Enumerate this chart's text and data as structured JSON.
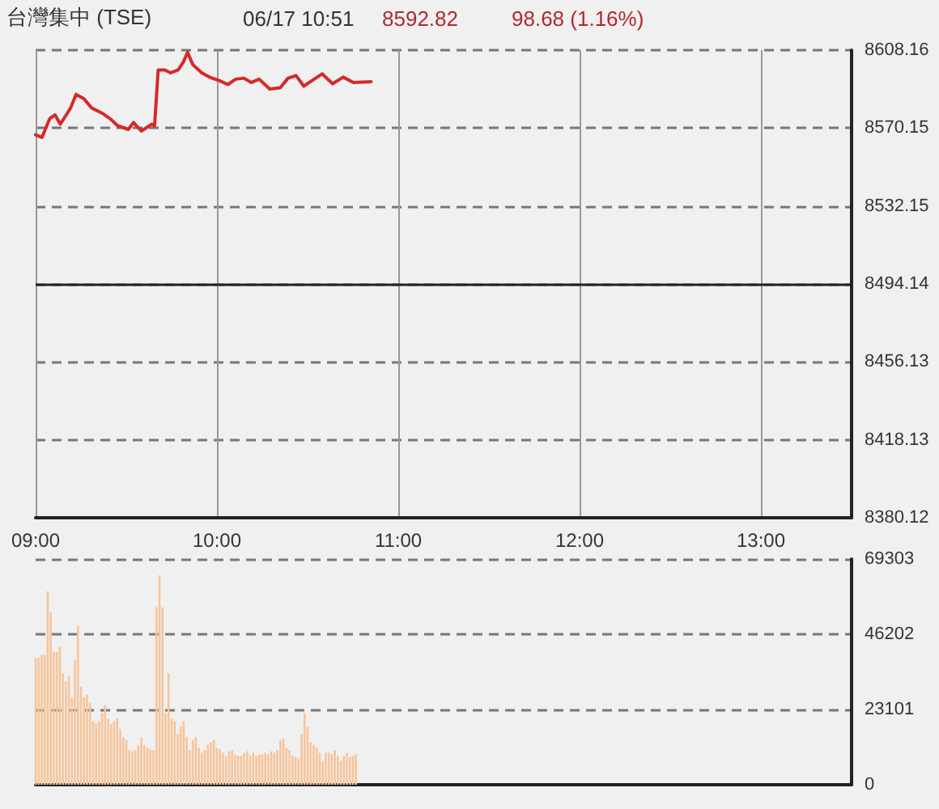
{
  "chart_data": [
    {
      "type": "line",
      "title": "台灣集中 (TSE)",
      "annotations": [
        "06/17 10:51",
        "8592.82",
        "98.68 (1.16%)"
      ],
      "x": [
        9.0,
        9.035,
        9.078,
        9.107,
        9.136,
        9.165,
        9.193,
        9.223,
        9.266,
        9.309,
        9.367,
        9.41,
        9.453,
        9.511,
        9.54,
        9.583,
        9.641,
        9.656,
        9.676,
        9.713,
        9.743,
        9.786,
        9.815,
        9.838,
        9.867,
        9.916,
        9.959,
        10.016,
        10.06,
        10.103,
        10.147,
        10.19,
        10.233,
        10.291,
        10.349,
        10.392,
        10.436,
        10.479,
        10.536,
        10.58,
        10.638,
        10.696,
        10.753,
        10.85
      ],
      "series": [
        {
          "color": "#d42a2a",
          "values": [
            8566.9,
            8565.6,
            8574.8,
            8576.6,
            8572.1,
            8576.0,
            8580.0,
            8586.6,
            8584.5,
            8580.0,
            8577.4,
            8574.8,
            8571.3,
            8569.5,
            8572.9,
            8568.7,
            8572.1,
            8571.3,
            8598.5,
            8598.5,
            8597.1,
            8598.5,
            8602.4,
            8607.1,
            8601.1,
            8597.1,
            8595.0,
            8593.2,
            8591.4,
            8594.0,
            8594.5,
            8592.4,
            8594.0,
            8589.2,
            8589.8,
            8594.5,
            8595.8,
            8590.6,
            8594.0,
            8596.6,
            8591.8,
            8595.0,
            8592.4,
            8592.8
          ]
        }
      ],
      "xlim": [
        9,
        13.5
      ],
      "xticks": [
        {
          "value": 9,
          "label": "09:00"
        },
        {
          "value": 10,
          "label": "10:00"
        },
        {
          "value": 11,
          "label": "11:00"
        },
        {
          "value": 12,
          "label": "12:00"
        },
        {
          "value": 13,
          "label": "13:00"
        }
      ],
      "ylim": [
        8380.12,
        8608.16
      ],
      "yticks": [
        8380.12,
        8418.13,
        8456.13,
        8494.14,
        8532.15,
        8570.15,
        8608.16
      ],
      "ref_lines": [
        {
          "axis": "y",
          "value": 8494.14,
          "color": "#222222",
          "line_style": "solid"
        }
      ],
      "grid": true,
      "marker": "none",
      "line_style": "solid"
    },
    {
      "type": "bar",
      "x": [
        9,
        9.0167,
        9.0333,
        9.05,
        9.0667,
        9.0833,
        9.1,
        9.1167,
        9.1333,
        9.15,
        9.1667,
        9.1833,
        9.2,
        9.2167,
        9.2333,
        9.25,
        9.2667,
        9.2833,
        9.3,
        9.3167,
        9.3333,
        9.35,
        9.3667,
        9.3833,
        9.4,
        9.4167,
        9.4333,
        9.45,
        9.4667,
        9.4833,
        9.5,
        9.5167,
        9.5333,
        9.55,
        9.5667,
        9.5833,
        9.6,
        9.6167,
        9.6333,
        9.65,
        9.6667,
        9.6833,
        9.7,
        9.7167,
        9.7333,
        9.75,
        9.7667,
        9.7833,
        9.8,
        9.8167,
        9.8333,
        9.85,
        9.8667,
        9.8833,
        9.9,
        9.9167,
        9.9333,
        9.95,
        9.9667,
        9.9833,
        10,
        10.0167,
        10.0333,
        10.05,
        10.0667,
        10.0833,
        10.1,
        10.1167,
        10.1333,
        10.15,
        10.1667,
        10.1833,
        10.2,
        10.2167,
        10.2333,
        10.25,
        10.2667,
        10.2833,
        10.3,
        10.3167,
        10.3333,
        10.35,
        10.3667,
        10.3833,
        10.4,
        10.4167,
        10.4333,
        10.45,
        10.4667,
        10.4833,
        10.5,
        10.5167,
        10.5333,
        10.55,
        10.5667,
        10.5833,
        10.6,
        10.6167,
        10.6333,
        10.65,
        10.6667,
        10.6833,
        10.7,
        10.7167,
        10.7333,
        10.75,
        10.7667
      ],
      "series": [
        {
          "color": "#f7c49a",
          "values": [
            39000,
            39000,
            39900,
            39900,
            59400,
            52900,
            40700,
            40700,
            42300,
            34200,
            31700,
            33400,
            26800,
            38200,
            48800,
            30100,
            26800,
            27700,
            25200,
            19500,
            18700,
            19500,
            22000,
            24400,
            20300,
            18700,
            19500,
            20300,
            17100,
            14600,
            13800,
            10600,
            10300,
            10600,
            12200,
            14600,
            12200,
            11400,
            10900,
            10600,
            54500,
            64300,
            54500,
            22000,
            34200,
            20300,
            19500,
            15500,
            17900,
            19500,
            14600,
            10600,
            13800,
            14600,
            11400,
            9800,
            10600,
            12200,
            13000,
            13800,
            11400,
            10900,
            9800,
            8900,
            10300,
            10600,
            9300,
            8900,
            8900,
            9800,
            10300,
            8900,
            9800,
            8900,
            9300,
            9300,
            9800,
            9300,
            10300,
            9800,
            10600,
            13800,
            14200,
            11400,
            10600,
            8900,
            8600,
            8100,
            15500,
            22000,
            17900,
            13000,
            12200,
            11400,
            9800,
            7300,
            9800,
            9800,
            9300,
            10600,
            8900,
            7300,
            8900,
            9800,
            8600,
            8900,
            9300
          ]
        }
      ],
      "xlim": [
        9,
        13.5
      ],
      "ylim": [
        0,
        69303
      ],
      "yticks": [
        0,
        23101,
        46202,
        69303
      ],
      "tick_labels": "y",
      "grid": "y"
    }
  ]
}
